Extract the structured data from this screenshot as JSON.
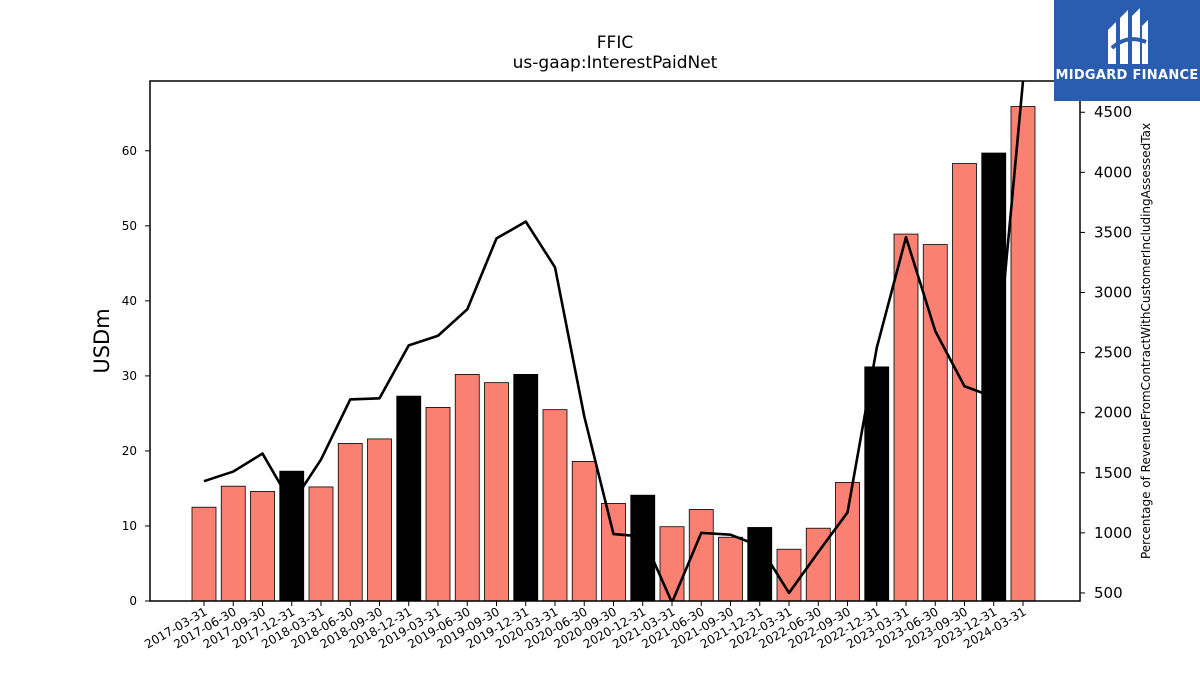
{
  "chart_data": {
    "type": "bar",
    "title": "FFIC",
    "subtitle": "us-gaap:InterestPaidNet",
    "ylabel": "USDm",
    "y2label": "Percentage of RevenueFromContractWithCustomerIncludingAssessedTax",
    "ylim": [
      0,
      69.3
    ],
    "y2lim": [
      433,
      4760
    ],
    "yticks": [
      0,
      10,
      20,
      30,
      40,
      50,
      60
    ],
    "y2ticks": [
      500,
      1000,
      1500,
      2000,
      2500,
      3000,
      3500,
      4000,
      4500
    ],
    "categories": [
      "2017-03-31",
      "2017-06-30",
      "2017-09-30",
      "2017-12-31",
      "2018-03-31",
      "2018-06-30",
      "2018-09-30",
      "2018-12-31",
      "2019-03-31",
      "2019-06-30",
      "2019-09-30",
      "2019-12-31",
      "2020-03-31",
      "2020-06-30",
      "2020-09-30",
      "2020-12-31",
      "2021-03-31",
      "2021-06-30",
      "2021-09-30",
      "2021-12-31",
      "2022-03-31",
      "2022-06-30",
      "2022-09-30",
      "2022-12-31",
      "2023-03-31",
      "2023-06-30",
      "2023-09-30",
      "2023-12-31",
      "2024-03-31"
    ],
    "series": [
      {
        "values": [
          12.5,
          15.3,
          14.6,
          17.3,
          15.2,
          21.0,
          21.6,
          27.3,
          25.8,
          30.2,
          29.1,
          30.2,
          25.5,
          18.6,
          13.0,
          14.1,
          9.9,
          12.2,
          8.5,
          9.8,
          6.9,
          9.7,
          15.8,
          31.2,
          48.9,
          47.5,
          58.3,
          59.7,
          65.9
        ],
        "colors": [
          "#fa8072",
          "#fa8072",
          "#fa8072",
          "#000000",
          "#fa8072",
          "#fa8072",
          "#fa8072",
          "#000000",
          "#fa8072",
          "#fa8072",
          "#fa8072",
          "#000000",
          "#fa8072",
          "#fa8072",
          "#fa8072",
          "#000000",
          "#fa8072",
          "#fa8072",
          "#fa8072",
          "#000000",
          "#fa8072",
          "#fa8072",
          "#fa8072",
          "#000000",
          "#fa8072",
          "#fa8072",
          "#fa8072",
          "#000000",
          "#fa8072"
        ]
      },
      {
        "type": "line",
        "axis": "right",
        "color": "#000000",
        "values": [
          1430,
          1510,
          1660,
          1240,
          1610,
          2110,
          2120,
          2560,
          2640,
          2860,
          3450,
          3590,
          3210,
          1970,
          990,
          970,
          420,
          1000,
          985,
          890,
          500,
          840,
          1170,
          2540,
          3460,
          2680,
          2220,
          2130,
          4760
        ]
      }
    ]
  },
  "logo": {
    "text": "MIDGARD FINANCE"
  }
}
